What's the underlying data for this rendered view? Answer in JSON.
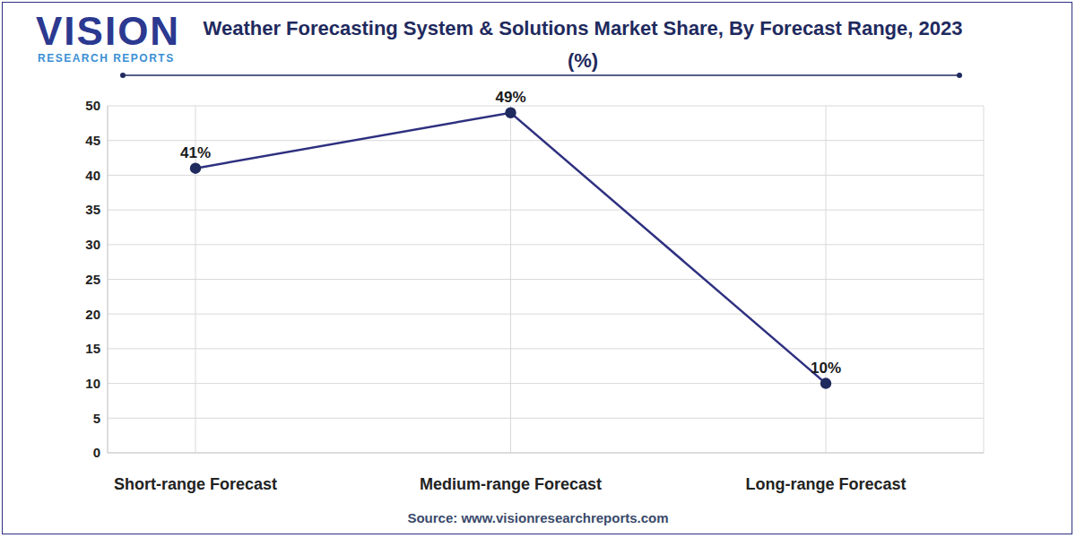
{
  "chart_data": {
    "type": "line",
    "title": "Weather Forecasting System & Solutions Market Share, By Forecast Range, 2023 (%)",
    "logo": [
      "VISION",
      "RESEARCH REPORTS"
    ],
    "source": "Source: www.visionresearchreports.com",
    "categories": [
      "Short-range Forecast",
      "Medium-range Forecast",
      "Long-range Forecast"
    ],
    "values": [
      41,
      49,
      10
    ],
    "value_labels": [
      "41%",
      "49%",
      "10%"
    ],
    "color": "#2e3080",
    "ylim": [
      0,
      50
    ],
    "yticks": [
      0,
      5,
      10,
      15,
      20,
      25,
      30,
      35,
      40,
      45,
      50
    ],
    "grid": true,
    "data_labels": true,
    "marker": "circle"
  }
}
